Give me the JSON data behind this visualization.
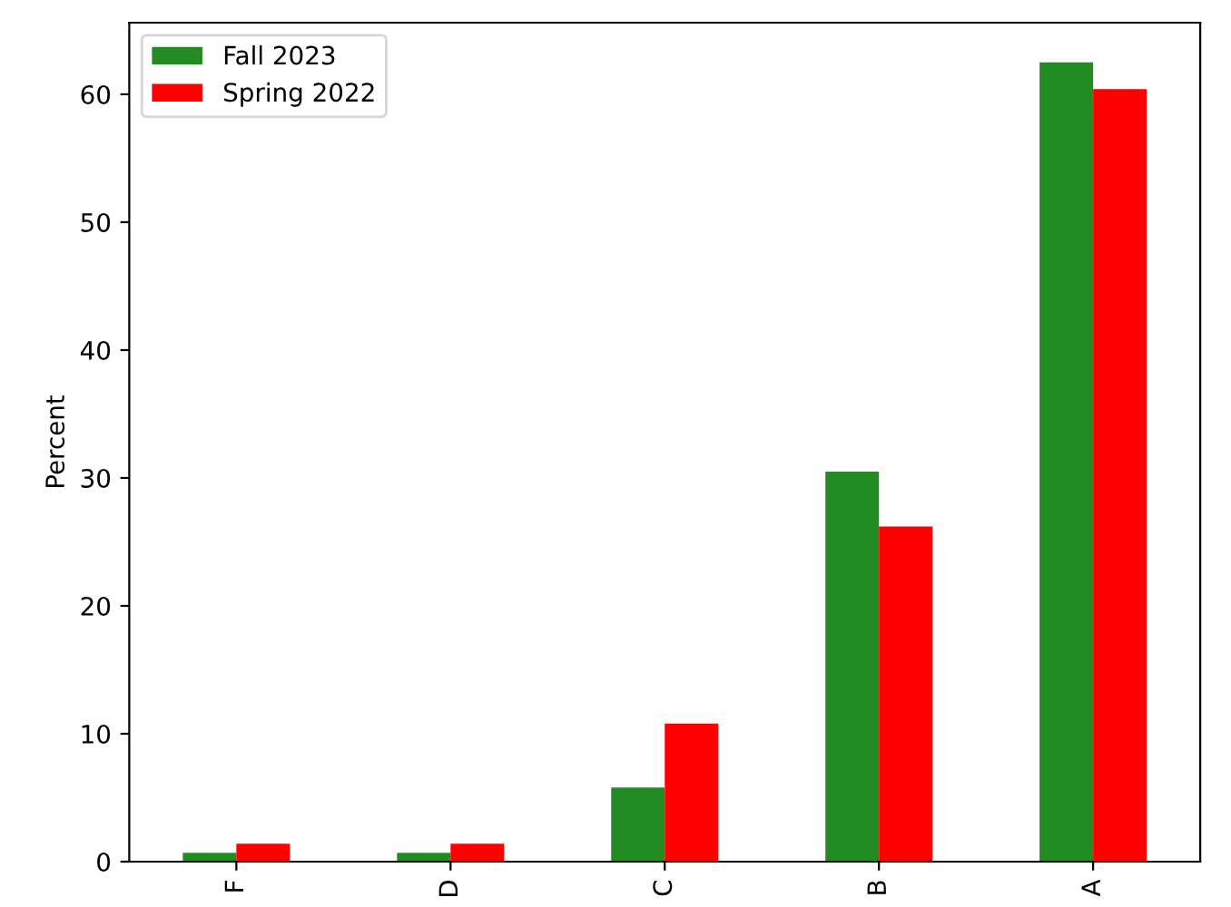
{
  "chart_data": {
    "type": "bar",
    "ylabel": "Percent",
    "categories": [
      "F",
      "D",
      "C",
      "B",
      "A"
    ],
    "series": [
      {
        "name": "Fall 2023",
        "color": "#228b22",
        "values": [
          0.7,
          0.7,
          5.8,
          30.5,
          62.5
        ]
      },
      {
        "name": "Spring 2022",
        "color": "#ff0000",
        "values": [
          1.4,
          1.4,
          10.8,
          26.2,
          60.4
        ]
      }
    ],
    "ylim": [
      0,
      65.6
    ],
    "yticks": [
      0,
      10,
      20,
      30,
      40,
      50,
      60
    ],
    "grid": false,
    "legend": "top left"
  }
}
